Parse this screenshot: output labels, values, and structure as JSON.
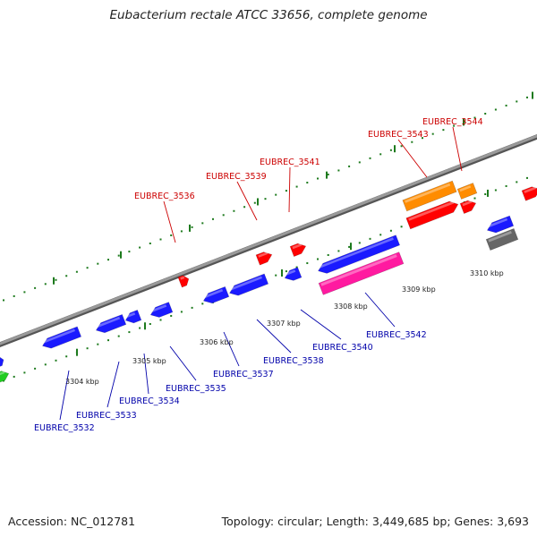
{
  "title": "Eubacterium rectale ATCC 33656, complete genome",
  "footer": {
    "accession": "Accession: NC_012781",
    "topology": "Topology: circular; Length: 3,449,685 bp; Genes: 3,693"
  },
  "colors": {
    "axis": "#7a7a7a",
    "tick": "#1d7a1d",
    "forward_label": "#cc0000",
    "reverse_label": "#0000aa",
    "blue": "#1a1aff",
    "red": "#ff0000",
    "orange": "#ff8c00",
    "pink": "#ff1aa0",
    "gray": "#666666",
    "green": "#22cc22"
  },
  "tick_labels": [
    "3304 kbp",
    "3305 kbp",
    "3306 kbp",
    "3307 kbp",
    "3308 kbp",
    "3309 kbp",
    "3310 kbp"
  ],
  "forward_labels": [
    "EUBREC_3536",
    "EUBREC_3539",
    "EUBREC_3541",
    "EUBREC_3543",
    "EUBREC_3544"
  ],
  "reverse_labels": [
    "EUBREC_3532",
    "EUBREC_3533",
    "EUBREC_3534",
    "EUBREC_3535",
    "EUBREC_3537",
    "EUBREC_3538",
    "EUBREC_3540",
    "EUBREC_3542"
  ]
}
